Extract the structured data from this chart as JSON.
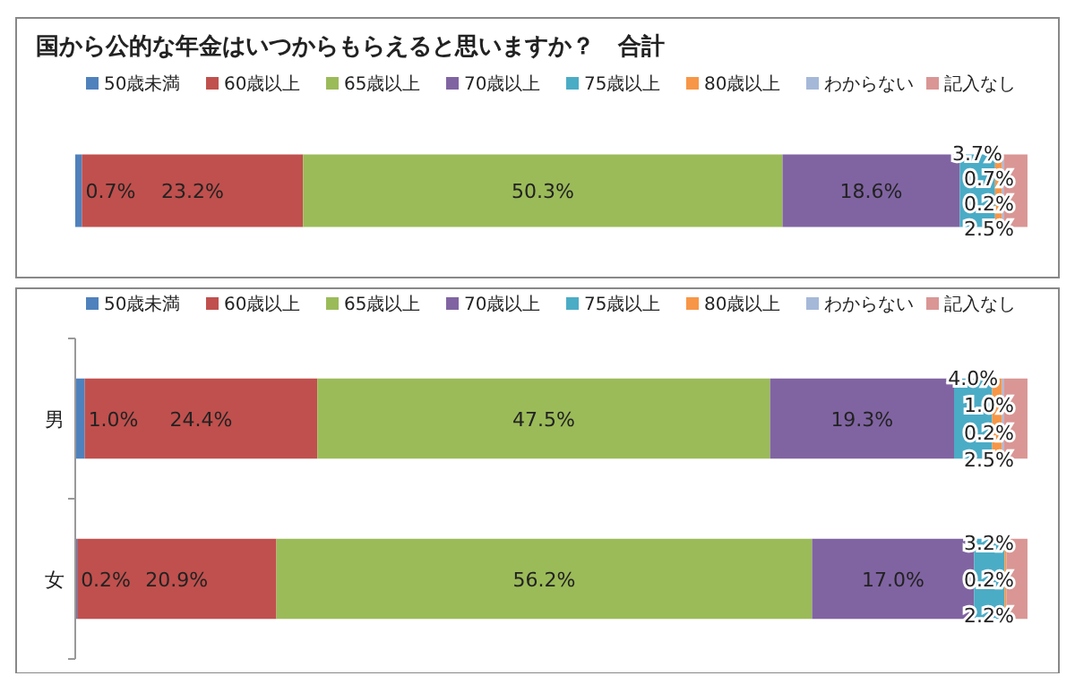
{
  "chart_data": [
    {
      "type": "bar",
      "title": "国から公的な年金はいつからもらえると思いますか？　合計",
      "orientation": "horizontal",
      "stacked": true,
      "legend": "top",
      "xlim": [
        0,
        100
      ],
      "tick_labels": false,
      "categories": [
        null
      ],
      "series": [
        {
          "name": "50歳未満",
          "color": "#4f81bd",
          "values": [
            0.7
          ],
          "value_labels": [
            "0.7%"
          ]
        },
        {
          "name": "60歳以上",
          "color": "#c0504d",
          "values": [
            23.2
          ],
          "value_labels": [
            "23.2%"
          ]
        },
        {
          "name": "65歳以上",
          "color": "#9bbb59",
          "values": [
            50.3
          ],
          "value_labels": [
            "50.3%"
          ]
        },
        {
          "name": "70歳以上",
          "color": "#8064a2",
          "values": [
            18.6
          ],
          "value_labels": [
            "18.6%"
          ]
        },
        {
          "name": "75歳以上",
          "color": "#4bacc6",
          "values": [
            3.7
          ],
          "value_labels": [
            "3.7%"
          ]
        },
        {
          "name": "80歳以上",
          "color": "#f79646",
          "values": [
            0.7
          ],
          "value_labels": [
            "0.7%"
          ]
        },
        {
          "name": "わからない",
          "color": "#a5b8d8",
          "values": [
            0.2
          ],
          "value_labels": [
            "0.2%"
          ]
        },
        {
          "name": "記入なし",
          "color": "#d99694",
          "values": [
            2.5
          ],
          "value_labels": [
            "2.5%"
          ]
        }
      ]
    },
    {
      "type": "bar",
      "orientation": "horizontal",
      "stacked": true,
      "legend": "top",
      "xlim": [
        0,
        100
      ],
      "tick_labels": "y",
      "categories": [
        "男",
        "女"
      ],
      "series": [
        {
          "name": "50歳未満",
          "color": "#4f81bd",
          "values": [
            1.0,
            0.2
          ],
          "value_labels": [
            "1.0%",
            "0.2%"
          ]
        },
        {
          "name": "60歳以上",
          "color": "#c0504d",
          "values": [
            24.4,
            20.9
          ],
          "value_labels": [
            "24.4%",
            "20.9%"
          ]
        },
        {
          "name": "65歳以上",
          "color": "#9bbb59",
          "values": [
            47.5,
            56.2
          ],
          "value_labels": [
            "47.5%",
            "56.2%"
          ]
        },
        {
          "name": "70歳以上",
          "color": "#8064a2",
          "values": [
            19.3,
            17.0
          ],
          "value_labels": [
            "19.3%",
            "17.0%"
          ]
        },
        {
          "name": "75歳以上",
          "color": "#4bacc6",
          "values": [
            4.0,
            3.2
          ],
          "value_labels": [
            "4.0%",
            "3.2%"
          ]
        },
        {
          "name": "80歳以上",
          "color": "#f79646",
          "values": [
            1.0,
            0.2
          ],
          "value_labels": [
            "1.0%",
            "0.2%"
          ]
        },
        {
          "name": "わからない",
          "color": "#a5b8d8",
          "values": [
            0.2,
            null
          ],
          "value_labels": [
            "0.2%",
            null
          ]
        },
        {
          "name": "記入なし",
          "color": "#d99694",
          "values": [
            2.5,
            2.2
          ],
          "value_labels": [
            "2.5%",
            "2.2%"
          ]
        }
      ]
    }
  ]
}
